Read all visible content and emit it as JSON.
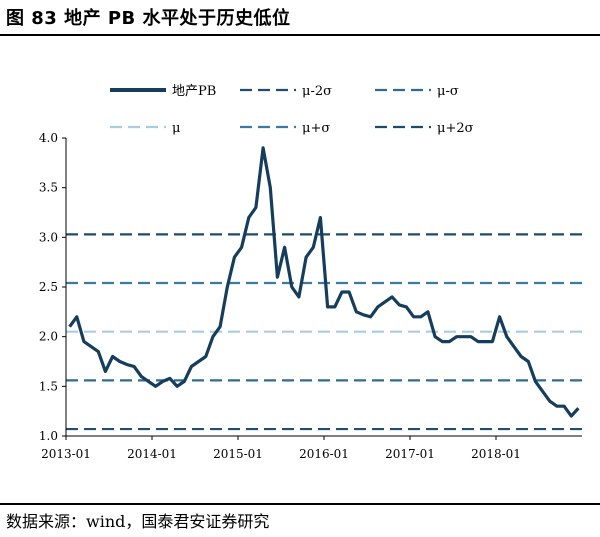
{
  "header": {
    "title": "图 83  地产 PB 水平处于历史低位"
  },
  "footer": {
    "source": "数据来源：wind，国泰君安证券研究"
  },
  "colors": {
    "pb": "#163e5c",
    "mu_minus_2sigma": "#1f4e6e",
    "mu_minus_sigma": "#2e6c93",
    "mu": "#a9cce3",
    "mu_plus_sigma": "#3a7aa3",
    "mu_plus_2sigma": "#1f4b6b"
  },
  "chart_data": {
    "type": "line",
    "title": "",
    "xlabel": "",
    "ylabel": "",
    "ylim": [
      1.0,
      4.0
    ],
    "y_ticks": [
      "1.0",
      "1.5",
      "2.0",
      "2.5",
      "3.0",
      "3.5",
      "4.0"
    ],
    "x_ticks": [
      "2013-01",
      "2014-01",
      "2015-01",
      "2016-01",
      "2017-01",
      "2018-01"
    ],
    "x_range": [
      "2013-01",
      "2018-12"
    ],
    "legend_position": "top",
    "series": [
      {
        "name": "地产PB",
        "style": "solid",
        "x": [
          "2013-01",
          "2013-02",
          "2013-03",
          "2013-04",
          "2013-05",
          "2013-06",
          "2013-07",
          "2013-08",
          "2013-09",
          "2013-10",
          "2013-11",
          "2013-12",
          "2014-01",
          "2014-02",
          "2014-03",
          "2014-04",
          "2014-05",
          "2014-06",
          "2014-07",
          "2014-08",
          "2014-09",
          "2014-10",
          "2014-11",
          "2014-12",
          "2015-01",
          "2015-02",
          "2015-03",
          "2015-04",
          "2015-05",
          "2015-06",
          "2015-07",
          "2015-08",
          "2015-09",
          "2015-10",
          "2015-11",
          "2015-12",
          "2016-01",
          "2016-02",
          "2016-03",
          "2016-04",
          "2016-05",
          "2016-06",
          "2016-07",
          "2016-08",
          "2016-09",
          "2016-10",
          "2016-11",
          "2016-12",
          "2017-01",
          "2017-02",
          "2017-03",
          "2017-04",
          "2017-05",
          "2017-06",
          "2017-07",
          "2017-08",
          "2017-09",
          "2017-10",
          "2017-11",
          "2017-12",
          "2018-01",
          "2018-02",
          "2018-03",
          "2018-04",
          "2018-05",
          "2018-06",
          "2018-07",
          "2018-08",
          "2018-09",
          "2018-10",
          "2018-11",
          "2018-12"
        ],
        "values": [
          2.1,
          2.2,
          1.95,
          1.9,
          1.85,
          1.65,
          1.8,
          1.75,
          1.72,
          1.7,
          1.6,
          1.55,
          1.5,
          1.55,
          1.58,
          1.5,
          1.55,
          1.7,
          1.75,
          1.8,
          2.0,
          2.1,
          2.5,
          2.8,
          2.9,
          3.2,
          3.3,
          3.9,
          3.5,
          2.6,
          2.9,
          2.5,
          2.4,
          2.8,
          2.9,
          3.2,
          2.3,
          2.3,
          2.45,
          2.45,
          2.25,
          2.22,
          2.2,
          2.3,
          2.35,
          2.4,
          2.32,
          2.3,
          2.2,
          2.2,
          2.25,
          2.0,
          1.95,
          1.95,
          2.0,
          2.0,
          2.0,
          1.95,
          1.95,
          1.95,
          2.2,
          2.0,
          1.9,
          1.8,
          1.75,
          1.55,
          1.45,
          1.35,
          1.3,
          1.3,
          1.2,
          1.28
        ]
      },
      {
        "name": "μ-2σ",
        "style": "dashed",
        "value": 1.07
      },
      {
        "name": "μ-σ",
        "style": "dashed",
        "value": 1.56
      },
      {
        "name": "μ",
        "style": "dashed",
        "value": 2.05
      },
      {
        "name": "μ+σ",
        "style": "dashed",
        "value": 2.54
      },
      {
        "name": "μ+2σ",
        "style": "dashed",
        "value": 3.03
      }
    ]
  }
}
